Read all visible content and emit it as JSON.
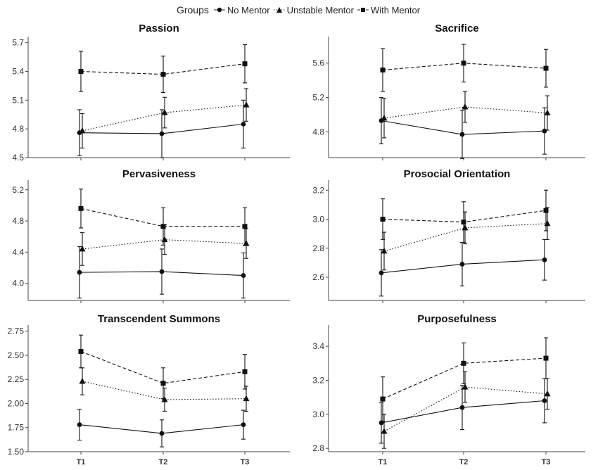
{
  "legend": {
    "title": "Groups",
    "items": [
      {
        "label": "No Mentor",
        "marker": "circle",
        "dash": "solid"
      },
      {
        "label": "Unstable Mentor",
        "marker": "triangle",
        "dash": "dotted"
      },
      {
        "label": "With Mentor",
        "marker": "square",
        "dash": "dashed"
      }
    ]
  },
  "chart_data": [
    {
      "type": "line",
      "title": "Passion",
      "x": [
        "T1",
        "T2",
        "T3"
      ],
      "ylim": [
        4.5,
        5.72
      ],
      "yticks": [
        "4.5",
        "4.8",
        "5.1",
        "5.4",
        "5.7"
      ],
      "show_x_labels": false,
      "series": [
        {
          "name": "No Mentor",
          "values": [
            4.76,
            4.75,
            4.85
          ],
          "errors": [
            0.24,
            0.25,
            0.25
          ]
        },
        {
          "name": "Unstable Mentor",
          "values": [
            4.78,
            4.97,
            5.05
          ],
          "errors": [
            0.18,
            0.16,
            0.17
          ]
        },
        {
          "name": "With Mentor",
          "values": [
            5.4,
            5.37,
            5.48
          ],
          "errors": [
            0.21,
            0.19,
            0.2
          ]
        }
      ]
    },
    {
      "type": "line",
      "title": "Sacrifice",
      "x": [
        "T1",
        "T2",
        "T3"
      ],
      "ylim": [
        4.5,
        5.86
      ],
      "yticks": [
        "4.8",
        "5.2",
        "5.6"
      ],
      "show_x_labels": false,
      "series": [
        {
          "name": "No Mentor",
          "values": [
            4.93,
            4.77,
            4.81
          ],
          "errors": [
            0.27,
            0.28,
            0.27
          ]
        },
        {
          "name": "Unstable Mentor",
          "values": [
            4.96,
            5.09,
            5.02
          ],
          "errors": [
            0.23,
            0.18,
            0.2
          ]
        },
        {
          "name": "With Mentor",
          "values": [
            5.52,
            5.6,
            5.54
          ],
          "errors": [
            0.25,
            0.22,
            0.22
          ]
        }
      ]
    },
    {
      "type": "line",
      "title": "Pervasiveness",
      "x": [
        "T1",
        "T2",
        "T3"
      ],
      "ylim": [
        3.78,
        5.27
      ],
      "yticks": [
        "4.0",
        "4.4",
        "4.8",
        "5.2"
      ],
      "show_x_labels": false,
      "series": [
        {
          "name": "No Mentor",
          "values": [
            4.14,
            4.15,
            4.1
          ],
          "errors": [
            0.33,
            0.29,
            0.29
          ]
        },
        {
          "name": "Unstable Mentor",
          "values": [
            4.44,
            4.56,
            4.51
          ],
          "errors": [
            0.21,
            0.19,
            0.19
          ]
        },
        {
          "name": "With Mentor",
          "values": [
            4.96,
            4.73,
            4.73
          ],
          "errors": [
            0.25,
            0.24,
            0.24
          ]
        }
      ]
    },
    {
      "type": "line",
      "title": "Prosocial Orientation",
      "x": [
        "T1",
        "T2",
        "T3"
      ],
      "ylim": [
        2.44,
        3.24
      ],
      "yticks": [
        "2.6",
        "2.8",
        "3.0",
        "3.2"
      ],
      "show_x_labels": false,
      "series": [
        {
          "name": "No Mentor",
          "values": [
            2.63,
            2.69,
            2.72
          ],
          "errors": [
            0.16,
            0.15,
            0.14
          ]
        },
        {
          "name": "Unstable Mentor",
          "values": [
            2.78,
            2.94,
            2.97
          ],
          "errors": [
            0.13,
            0.11,
            0.11
          ]
        },
        {
          "name": "With Mentor",
          "values": [
            3.0,
            2.98,
            3.06
          ],
          "errors": [
            0.14,
            0.14,
            0.14
          ]
        }
      ]
    },
    {
      "type": "line",
      "title": "Transcendent Summons",
      "x": [
        "T1",
        "T2",
        "T3"
      ],
      "ylim": [
        1.5,
        2.77
      ],
      "yticks": [
        "1.50",
        "1.75",
        "2.00",
        "2.25",
        "2.50",
        "2.75"
      ],
      "show_x_labels": true,
      "series": [
        {
          "name": "No Mentor",
          "values": [
            1.78,
            1.69,
            1.78
          ],
          "errors": [
            0.16,
            0.14,
            0.15
          ]
        },
        {
          "name": "Unstable Mentor",
          "values": [
            2.23,
            2.04,
            2.05
          ],
          "errors": [
            0.14,
            0.12,
            0.13
          ]
        },
        {
          "name": "With Mentor",
          "values": [
            2.54,
            2.21,
            2.33
          ],
          "errors": [
            0.17,
            0.16,
            0.18
          ]
        }
      ]
    },
    {
      "type": "line",
      "title": "Purposefulness",
      "x": [
        "T1",
        "T2",
        "T3"
      ],
      "ylim": [
        2.78,
        3.5
      ],
      "yticks": [
        "2.8",
        "3.0",
        "3.2",
        "3.4"
      ],
      "show_x_labels": true,
      "series": [
        {
          "name": "No Mentor",
          "values": [
            2.95,
            3.04,
            3.08
          ],
          "errors": [
            0.12,
            0.13,
            0.13
          ]
        },
        {
          "name": "Unstable Mentor",
          "values": [
            2.9,
            3.16,
            3.12
          ],
          "errors": [
            0.1,
            0.09,
            0.09
          ]
        },
        {
          "name": "With Mentor",
          "values": [
            3.09,
            3.3,
            3.33
          ],
          "errors": [
            0.13,
            0.12,
            0.12
          ]
        }
      ]
    }
  ]
}
